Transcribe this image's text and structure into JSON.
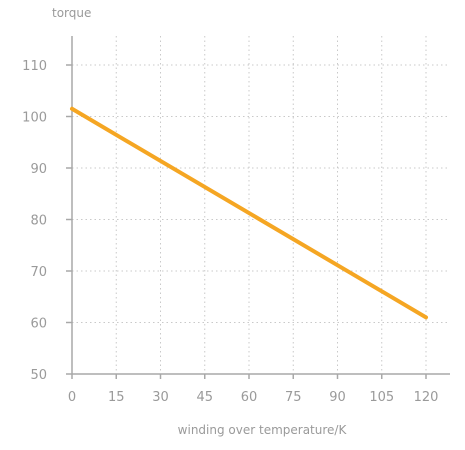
{
  "chart_data": {
    "type": "line",
    "title": "",
    "xlabel": "winding over temperature/K",
    "ylabel": "torque",
    "xlim": [
      0,
      125
    ],
    "ylim": [
      50,
      115
    ],
    "x_ticks": [
      0,
      15,
      30,
      45,
      60,
      75,
      90,
      105,
      120
    ],
    "y_ticks": [
      50,
      60,
      70,
      80,
      90,
      100,
      110
    ],
    "grid": true,
    "legend": "none",
    "series": [
      {
        "color": "#f5a623",
        "x": [
          0,
          120
        ],
        "y": [
          101.5,
          61
        ]
      }
    ]
  }
}
